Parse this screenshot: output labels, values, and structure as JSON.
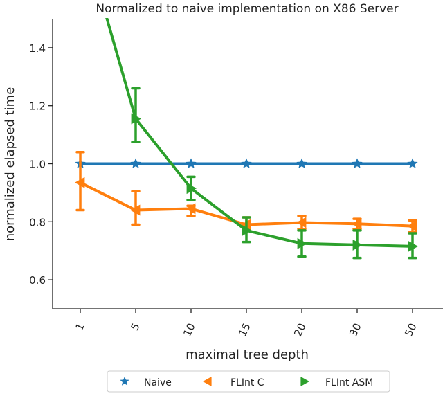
{
  "chart_data": {
    "type": "line",
    "title": "Normalized to naive implementation on X86 Server",
    "xlabel": "maximal tree depth",
    "ylabel": "normalized elapsed time",
    "categories": [
      "1",
      "5",
      "10",
      "15",
      "20",
      "30",
      "50"
    ],
    "ylim": [
      0.5,
      1.5
    ],
    "yticks": [
      "0.6",
      "0.8",
      "1.0",
      "1.2",
      "1.4"
    ],
    "grid": false,
    "legend_position": "bottom",
    "series": [
      {
        "name": "Naive",
        "color": "#1f77b4",
        "marker": "star",
        "values": [
          1.0,
          1.0,
          1.0,
          1.0,
          1.0,
          1.0,
          1.0
        ],
        "err_low": null,
        "err_high": null
      },
      {
        "name": "FLInt C",
        "color": "#ff7f0e",
        "marker": "triangle-left",
        "values": [
          0.935,
          0.84,
          0.845,
          0.79,
          0.797,
          0.793,
          0.785
        ],
        "err_low": [
          0.84,
          0.79,
          0.82,
          0.77,
          0.775,
          0.775,
          0.765
        ],
        "err_high": [
          1.04,
          0.905,
          0.855,
          0.815,
          0.82,
          0.81,
          0.805
        ]
      },
      {
        "name": "FLInt ASM",
        "color": "#2ca02c",
        "marker": "triangle-right",
        "values": [
          1.82,
          1.155,
          0.915,
          0.77,
          0.725,
          0.72,
          0.715
        ],
        "err_low": [
          null,
          1.075,
          0.875,
          0.73,
          0.68,
          0.675,
          0.675
        ],
        "err_high": [
          null,
          1.26,
          0.955,
          0.815,
          0.77,
          0.77,
          0.76
        ]
      }
    ]
  }
}
